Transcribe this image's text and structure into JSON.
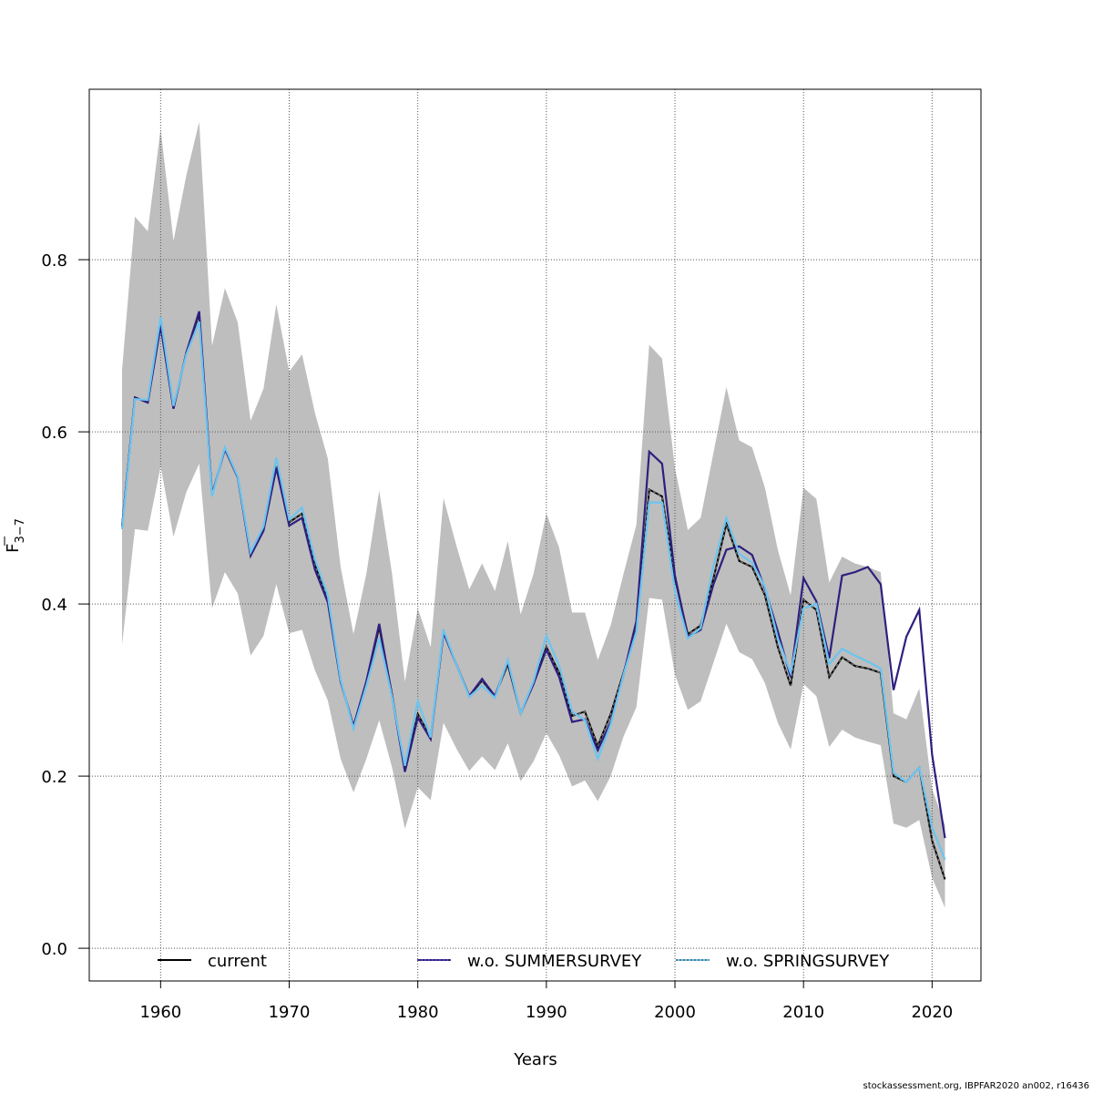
{
  "chart_data": {
    "type": "line",
    "title": "",
    "xlabel": "Years",
    "ylabel_main": "F",
    "ylabel_sub": "3−7",
    "ylabel_overbar": true,
    "xlim": [
      1954.45,
      2023.8
    ],
    "ylim": [
      -0.038,
      0.998
    ],
    "xticks": [
      1960,
      1970,
      1980,
      1990,
      2000,
      2010,
      2020
    ],
    "yticks": [
      0.0,
      0.2,
      0.4,
      0.6,
      0.8
    ],
    "ytick_labels": [
      "0.0",
      "0.2",
      "0.4",
      "0.6",
      "0.8"
    ],
    "grid": true,
    "legend_position": "bottom",
    "x": [
      1957,
      1958,
      1959,
      1960,
      1961,
      1962,
      1963,
      1964,
      1965,
      1966,
      1967,
      1968,
      1969,
      1970,
      1971,
      1972,
      1973,
      1974,
      1975,
      1976,
      1977,
      1978,
      1979,
      1980,
      1981,
      1982,
      1983,
      1984,
      1985,
      1986,
      1987,
      1988,
      1989,
      1990,
      1991,
      1992,
      1993,
      1994,
      1995,
      1996,
      1997,
      1998,
      1999,
      2000,
      2001,
      2002,
      2003,
      2004,
      2005,
      2006,
      2007,
      2008,
      2009,
      2010,
      2011,
      2012,
      2013,
      2014,
      2015,
      2016,
      2017,
      2018,
      2019,
      2020,
      2021
    ],
    "confidence_band": {
      "name": "current 95% CI",
      "color": "#bebebe",
      "lower": [
        0.353,
        0.487,
        0.485,
        0.56,
        0.478,
        0.53,
        0.563,
        0.395,
        0.437,
        0.412,
        0.34,
        0.363,
        0.423,
        0.366,
        0.37,
        0.323,
        0.288,
        0.22,
        0.181,
        0.22,
        0.265,
        0.21,
        0.139,
        0.187,
        0.172,
        0.262,
        0.232,
        0.206,
        0.223,
        0.207,
        0.238,
        0.194,
        0.217,
        0.25,
        0.224,
        0.188,
        0.195,
        0.171,
        0.2,
        0.246,
        0.28,
        0.407,
        0.405,
        0.318,
        0.277,
        0.287,
        0.332,
        0.377,
        0.344,
        0.336,
        0.308,
        0.262,
        0.231,
        0.307,
        0.293,
        0.234,
        0.254,
        0.245,
        0.24,
        0.236,
        0.145,
        0.14,
        0.149,
        0.082,
        0.047
      ],
      "upper": [
        0.672,
        0.85,
        0.833,
        0.952,
        0.822,
        0.898,
        0.96,
        0.7,
        0.767,
        0.727,
        0.613,
        0.65,
        0.748,
        0.67,
        0.69,
        0.622,
        0.569,
        0.443,
        0.365,
        0.435,
        0.532,
        0.435,
        0.31,
        0.395,
        0.35,
        0.523,
        0.468,
        0.417,
        0.447,
        0.415,
        0.473,
        0.388,
        0.435,
        0.505,
        0.465,
        0.39,
        0.39,
        0.335,
        0.375,
        0.435,
        0.492,
        0.701,
        0.685,
        0.558,
        0.486,
        0.5,
        0.576,
        0.652,
        0.59,
        0.582,
        0.535,
        0.463,
        0.41,
        0.535,
        0.522,
        0.425,
        0.455,
        0.447,
        0.443,
        0.437,
        0.273,
        0.266,
        0.302,
        0.185,
        0.143
      ]
    },
    "series": [
      {
        "name": "current",
        "color": "#000000",
        "values": [
          0.49,
          0.64,
          0.634,
          0.725,
          0.627,
          0.692,
          0.737,
          0.527,
          0.58,
          0.547,
          0.457,
          0.487,
          0.56,
          0.495,
          0.505,
          0.445,
          0.405,
          0.31,
          0.258,
          0.31,
          0.373,
          0.295,
          0.207,
          0.272,
          0.245,
          0.367,
          0.33,
          0.293,
          0.311,
          0.293,
          0.33,
          0.273,
          0.307,
          0.35,
          0.32,
          0.27,
          0.275,
          0.235,
          0.272,
          0.32,
          0.37,
          0.533,
          0.525,
          0.43,
          0.365,
          0.375,
          0.43,
          0.493,
          0.45,
          0.443,
          0.41,
          0.35,
          0.305,
          0.405,
          0.393,
          0.315,
          0.338,
          0.328,
          0.325,
          0.32,
          0.2,
          0.193,
          0.21,
          0.125,
          0.08
        ]
      },
      {
        "name": "w.o. SUMMERSURVEY",
        "color": "#2e1f7f",
        "values": [
          0.49,
          0.64,
          0.634,
          0.723,
          0.627,
          0.692,
          0.74,
          0.527,
          0.58,
          0.547,
          0.456,
          0.485,
          0.558,
          0.491,
          0.5,
          0.44,
          0.402,
          0.31,
          0.258,
          0.31,
          0.377,
          0.293,
          0.205,
          0.268,
          0.243,
          0.367,
          0.33,
          0.293,
          0.313,
          0.293,
          0.333,
          0.273,
          0.307,
          0.347,
          0.315,
          0.263,
          0.266,
          0.23,
          0.263,
          0.318,
          0.38,
          0.577,
          0.563,
          0.433,
          0.362,
          0.37,
          0.423,
          0.463,
          0.467,
          0.457,
          0.418,
          0.368,
          0.315,
          0.43,
          0.403,
          0.337,
          0.433,
          0.437,
          0.443,
          0.423,
          0.3,
          0.362,
          0.393,
          0.225,
          0.128
        ]
      },
      {
        "name": "w.o. SPRINGSURVEY",
        "color": "#6cc4f0",
        "values": [
          0.487,
          0.638,
          0.637,
          0.733,
          0.63,
          0.69,
          0.728,
          0.525,
          0.582,
          0.548,
          0.46,
          0.49,
          0.57,
          0.498,
          0.512,
          0.452,
          0.41,
          0.312,
          0.255,
          0.305,
          0.36,
          0.292,
          0.212,
          0.287,
          0.245,
          0.37,
          0.33,
          0.292,
          0.305,
          0.291,
          0.335,
          0.273,
          0.31,
          0.363,
          0.328,
          0.275,
          0.265,
          0.22,
          0.26,
          0.318,
          0.368,
          0.518,
          0.518,
          0.415,
          0.36,
          0.372,
          0.445,
          0.5,
          0.458,
          0.448,
          0.42,
          0.36,
          0.32,
          0.395,
          0.4,
          0.33,
          0.348,
          0.34,
          0.333,
          0.325,
          0.204,
          0.193,
          0.21,
          0.14,
          0.103
        ]
      }
    ]
  },
  "legend": {
    "items": [
      {
        "label": "current",
        "color": "#000000",
        "style": "solid"
      },
      {
        "label": "w.o. SUMMERSURVEY",
        "color": "#2e1f7f",
        "style": "dashed"
      },
      {
        "label": "w.o. SPRINGSURVEY",
        "color": "#6cc4f0",
        "style": "dotted"
      }
    ]
  },
  "footer": "stockassessment.org, IBPFAR2020  an002, r16436"
}
